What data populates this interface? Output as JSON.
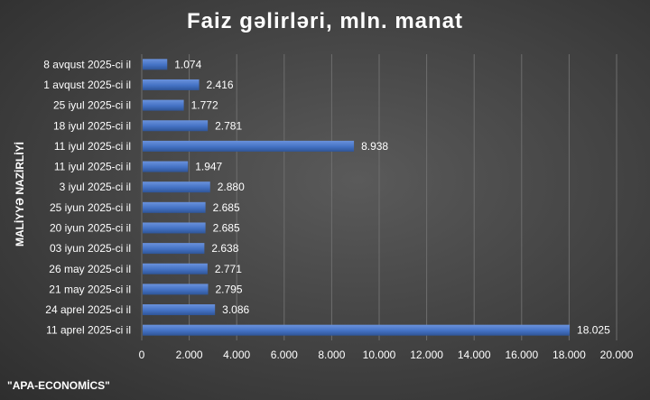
{
  "chart_data": {
    "type": "bar",
    "orientation": "horizontal",
    "title": "Faiz gəlirləri, mln. manat",
    "ylabel": "MALİYYƏ NAZİRLİYİ",
    "xlabel": "",
    "categories": [
      "8 avqust 2025-ci il",
      "1 avqust 2025-ci il",
      "25 iyul 2025-ci il",
      "18 iyul 2025-ci il",
      "11 iyul 2025-ci il",
      "11 iyul 2025-ci il",
      "3 iyul 2025-ci il",
      "25 iyun 2025-ci il",
      "20 iyun 2025-ci il",
      "03 iyun 2025-ci il",
      "26 may 2025-ci il",
      "21 may 2025-ci il",
      "24 aprel 2025-ci il",
      "11 aprel 2025-ci il"
    ],
    "values": [
      1.074,
      2.416,
      1.772,
      2.781,
      8.938,
      1.947,
      2.88,
      2.685,
      2.685,
      2.638,
      2.771,
      2.795,
      3.086,
      18.025
    ],
    "value_labels": [
      "1.074",
      "2.416",
      "1.772",
      "2.781",
      "8.938",
      "1.947",
      "2.880",
      "2.685",
      "2.685",
      "2.638",
      "2.771",
      "2.795",
      "3.086",
      "18.025"
    ],
    "xlim": [
      0,
      20
    ],
    "xticks": [
      0,
      2,
      4,
      6,
      8,
      10,
      12,
      14,
      16,
      18,
      20
    ],
    "xtick_labels": [
      "0",
      "2.000",
      "4.000",
      "6.000",
      "8.000",
      "10.000",
      "12.000",
      "14.000",
      "16.000",
      "18.000",
      "20.000"
    ],
    "grid": true,
    "bar_color": "#4472c4",
    "source": "\"APA-ECONOMİCS\""
  }
}
